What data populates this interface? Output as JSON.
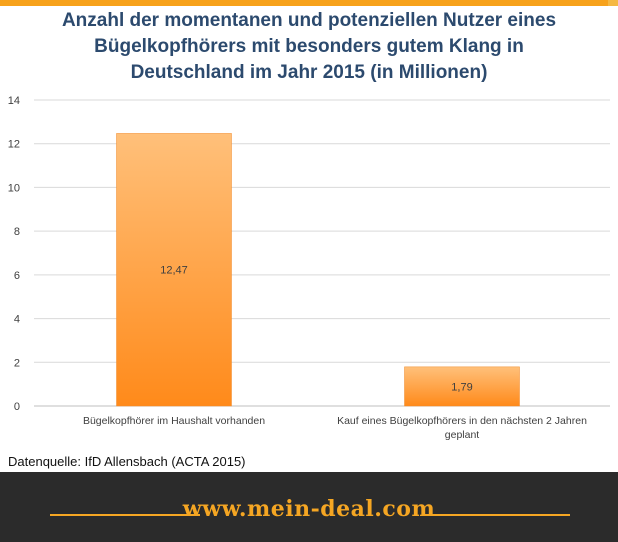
{
  "header": {
    "title_lines": [
      "Anzahl der momentanen und potenziellen Nutzer eines",
      "Bügelkopfhörers mit besonders gutem Klang in",
      "Deutschland im Jahr 2015 (in Millionen)"
    ]
  },
  "chart_data": {
    "type": "bar",
    "title": "Anzahl der momentanen und potenziellen Nutzer eines Bügelkopfhörers mit besonders gutem Klang in Deutschland im Jahr 2015 (in Millionen)",
    "categories": [
      [
        "Bügelkopfhörer im Haushalt vorhanden"
      ],
      [
        "Kauf eines Bügelkopfhörers in den nächsten 2 Jahren",
        "geplant"
      ]
    ],
    "values": [
      12.47,
      1.79
    ],
    "data_labels": [
      "12,47",
      "1,79"
    ],
    "y_ticks": [
      0,
      2,
      4,
      6,
      8,
      10,
      12,
      14
    ],
    "ylim": [
      0,
      14
    ],
    "grid": true,
    "colors": {
      "bar_top": "#ffc07a",
      "bar_bottom": "#ff8a1a",
      "bar_edge": "#f08a2a",
      "grid": "#d9d9d9",
      "axis": "#bfbfbf"
    }
  },
  "source": "Datenquelle: IfD Allensbach (ACTA 2015)",
  "footer": {
    "text": "www.mein-deal.com",
    "accent_color": "#f5a623"
  }
}
